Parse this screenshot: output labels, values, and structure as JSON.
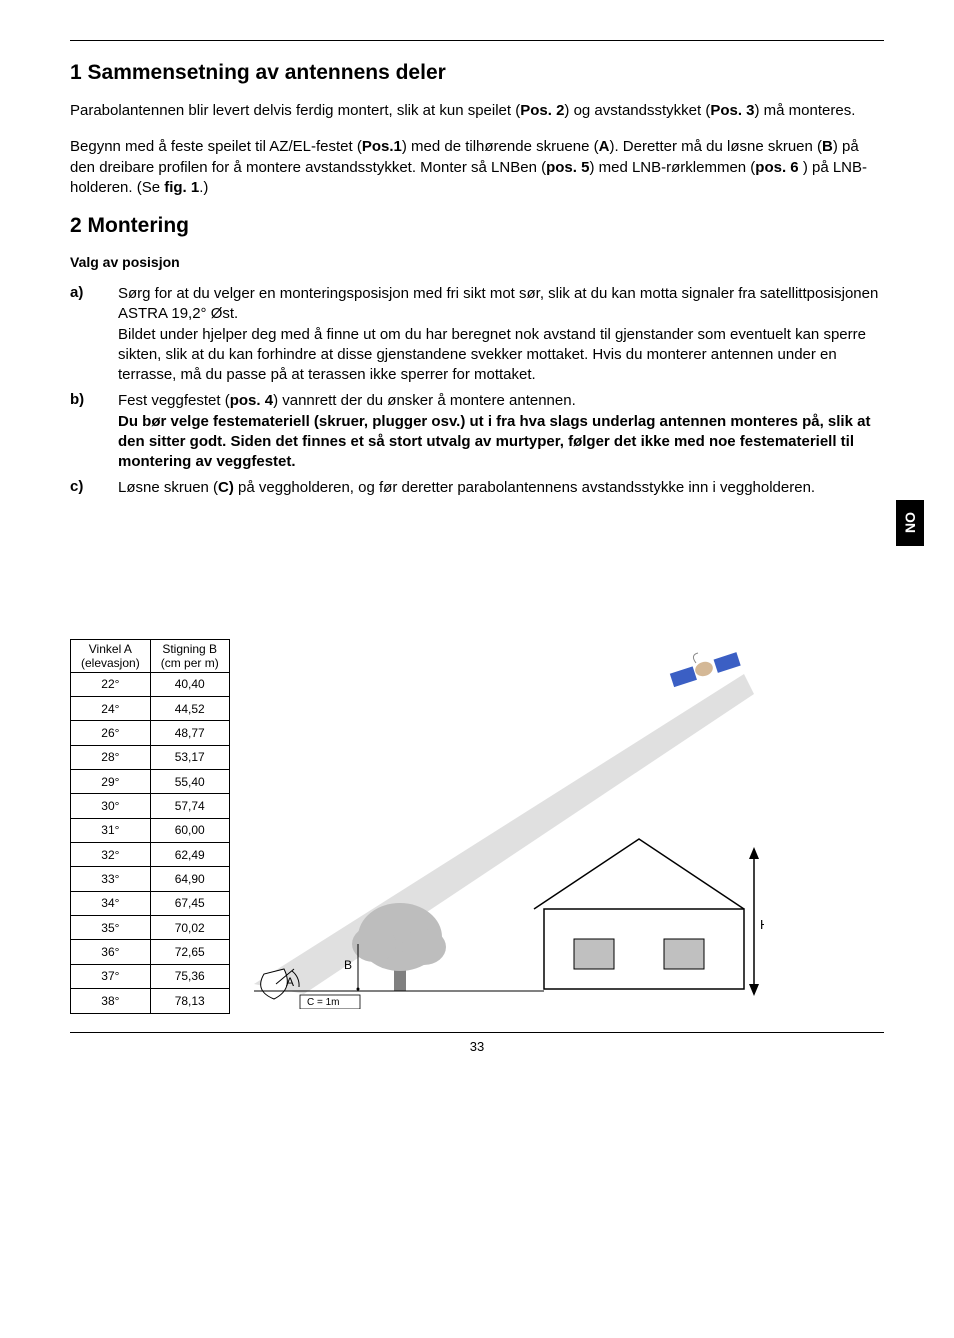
{
  "section1": {
    "title": "1 Sammensetning av antennens deler",
    "p1_a": "Parabolantennen blir levert delvis ferdig montert, slik at kun speilet (",
    "p1_pos2": "Pos. 2",
    "p1_b": ") og avstandsstykket (",
    "p1_pos3": "Pos. 3",
    "p1_c": ") må monteres.",
    "p2_a": "Begynn med å feste speilet til AZ/EL-festet (",
    "p2_pos1": "Pos.1",
    "p2_b": ") med de tilhørende skruene (",
    "p2_A": "A",
    "p2_c": "). Deretter må du løsne skruen (",
    "p2_B": "B",
    "p2_d": ") på den dreibare profilen for å montere avstandsstykket. Monter så LNBen (",
    "p2_pos5": "pos. 5",
    "p2_e": ") med LNB-rørklemmen (",
    "p2_pos6": "pos. 6",
    "p2_f": " ) på LNB-holderen. (Se ",
    "p2_fig1": "fig. 1",
    "p2_g": ".)"
  },
  "section2": {
    "title": "2 Montering",
    "subtitle": "Valg av posisjon",
    "a_label": "a)",
    "a_text": "Sørg for at du velger en monteringsposisjon med fri sikt mot sør, slik at du kan motta signaler fra satellittposisjonen ASTRA 19,2° Øst.\nBildet under hjelper deg med å finne ut om du har beregnet nok avstand til gjenstander som eventuelt kan sperre sikten, slik at du kan forhindre at disse gjenstandene svekker mottaket. Hvis du monterer antennen under en terrasse, må du passe på at terassen ikke sperrer for mottaket.",
    "b_label": "b)",
    "b_text_a": "Fest veggfestet (",
    "b_pos4": "pos. 4",
    "b_text_b": ") vannrett der du ønsker å montere antennen.",
    "b_bold": "Du bør velge festemateriell (skruer, plugger osv.) ut i fra hva slags underlag antennen monteres på, slik at den sitter godt. Siden det finnes et så stort utvalg av murtyper, følger det ikke med noe festemateriell til montering av veggfestet.",
    "c_label": "c)",
    "c_text_a": "Løsne skruen (",
    "c_C": "C)",
    "c_text_b": " på veggholderen, og før deretter parabolantennens avstandsstykke inn i veggholderen."
  },
  "sideTab": "NO",
  "table": {
    "h1": "Vinkel A",
    "h1b": "(elevasjon)",
    "h2": "Stigning B",
    "h2b": "(cm per m)",
    "rows": [
      [
        "22°",
        "40,40"
      ],
      [
        "24°",
        "44,52"
      ],
      [
        "26°",
        "48,77"
      ],
      [
        "28°",
        "53,17"
      ],
      [
        "29°",
        "55,40"
      ],
      [
        "30°",
        "57,74"
      ],
      [
        "31°",
        "60,00"
      ],
      [
        "32°",
        "62,49"
      ],
      [
        "33°",
        "64,90"
      ],
      [
        "34°",
        "67,45"
      ],
      [
        "35°",
        "70,02"
      ],
      [
        "36°",
        "72,65"
      ],
      [
        "37°",
        "75,36"
      ],
      [
        "38°",
        "78,13"
      ]
    ]
  },
  "diagram": {
    "labelA": "A",
    "labelB": "B",
    "labelC": "C = 1m",
    "labelH": "H",
    "colors": {
      "beam": "#e0e0e0",
      "house_outline": "#000000",
      "tree_fill": "#bdbdbd",
      "sat_blue": "#3b5fc4",
      "sat_body": "#d4b896"
    }
  },
  "pageNumber": "33"
}
